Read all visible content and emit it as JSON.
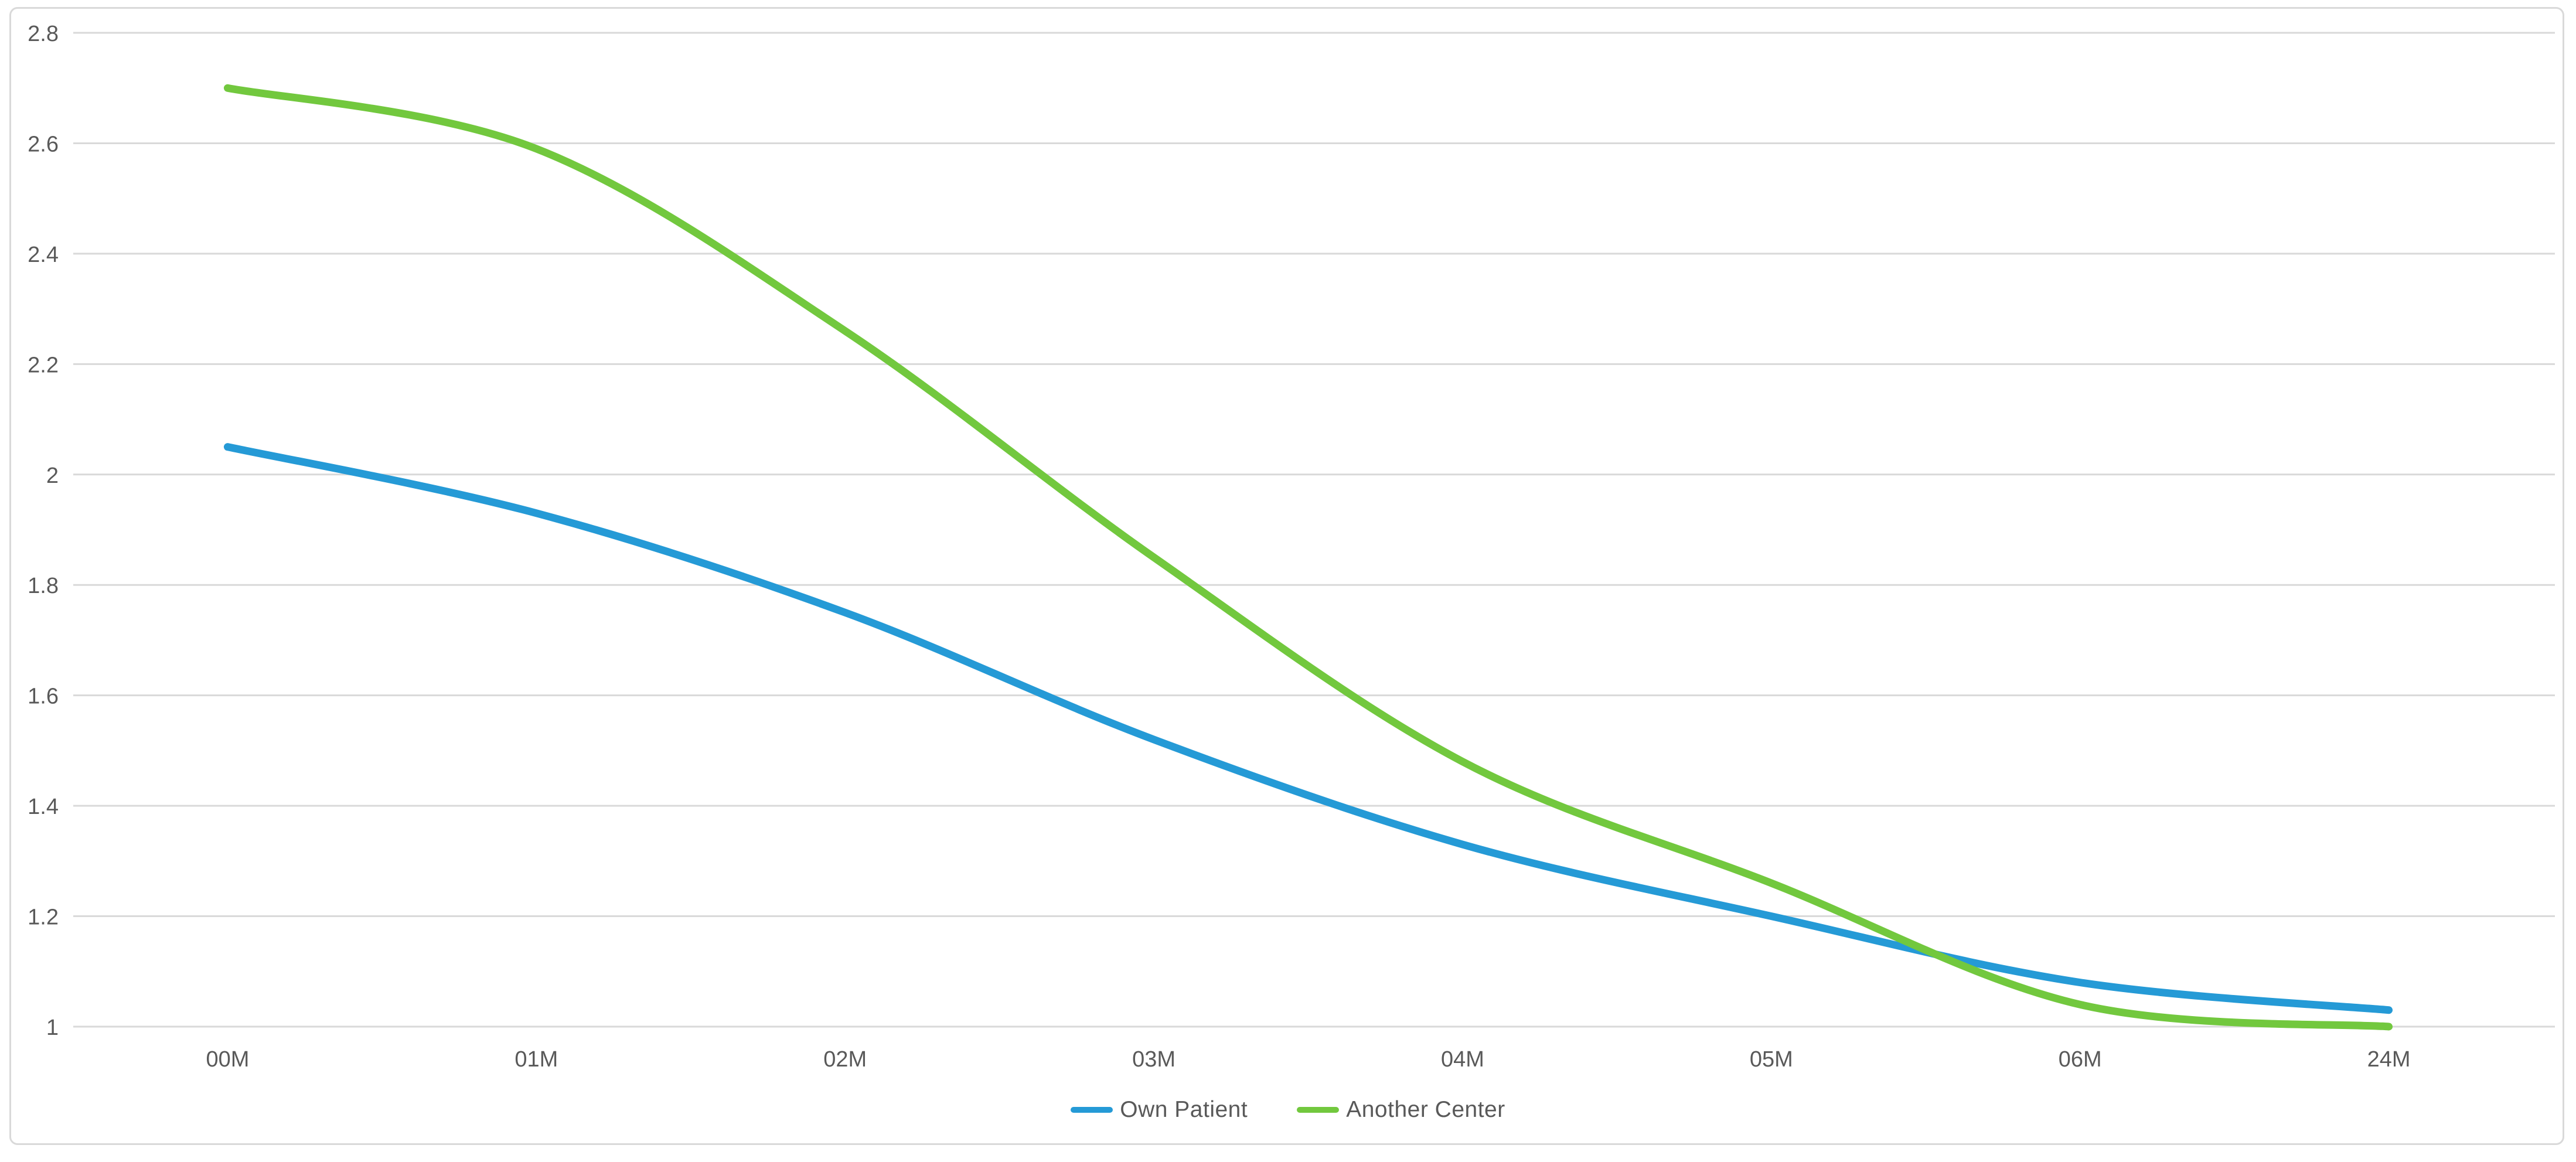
{
  "chart_data": {
    "type": "line",
    "title": "",
    "categories": [
      "00M",
      "01M",
      "02M",
      "03M",
      "04M",
      "05M",
      "06M",
      "24M"
    ],
    "series": [
      {
        "name": "Own Patient",
        "color": "#259AD6",
        "values": [
          2.05,
          1.93,
          1.75,
          1.52,
          1.33,
          1.2,
          1.08,
          1.03
        ]
      },
      {
        "name": "Another Center",
        "color": "#72C83E",
        "values": [
          2.7,
          2.59,
          2.26,
          1.85,
          1.48,
          1.26,
          1.04,
          1.0
        ]
      }
    ],
    "ylim": [
      1.0,
      2.8
    ],
    "yticks": [
      1.0,
      1.2,
      1.4,
      1.6,
      1.8,
      2.0,
      2.2,
      2.4,
      2.6,
      2.8
    ],
    "ytick_labels": [
      "1",
      "1.2",
      "1.4",
      "1.6",
      "1.8",
      "2",
      "2.2",
      "2.4",
      "2.6",
      "2.8"
    ],
    "grid": true,
    "smoothed_lines": true,
    "legend_position": "bottom-center",
    "colors": {
      "gridline": "#D9D9D9",
      "frame_border": "#D9D9D9",
      "axis_text": "#595959",
      "background": "#FFFFFF"
    }
  }
}
